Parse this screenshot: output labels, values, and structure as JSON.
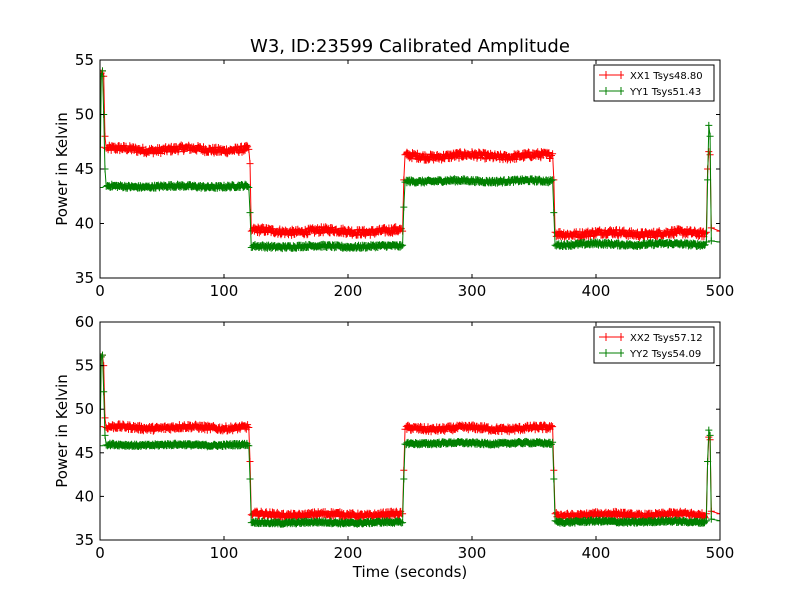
{
  "figure_title": "W3, ID:23599 Calibrated Amplitude",
  "chart_data": [
    {
      "type": "line",
      "ylabel": "Power in Kelvin",
      "xlabel": "",
      "xlim": [
        0,
        500
      ],
      "ylim": [
        35,
        55
      ],
      "xticks": [
        0,
        100,
        200,
        300,
        400,
        500
      ],
      "yticks": [
        35,
        40,
        45,
        50,
        55
      ],
      "legend_position": "top-right",
      "series": [
        {
          "name": "XX1 Tsys48.80",
          "color": "#ff0000",
          "marker": "+",
          "points": [
            [
              0,
              47.0
            ],
            [
              1,
              53.8
            ],
            [
              2,
              54.0
            ],
            [
              3,
              53.5
            ],
            [
              4,
              48.0
            ],
            [
              5,
              46.9
            ],
            [
              120,
              46.8
            ],
            [
              121,
              45.5
            ],
            [
              122,
              39.3
            ],
            [
              244,
              39.3
            ],
            [
              245,
              44.0
            ],
            [
              246,
              46.3
            ],
            [
              365,
              46.4
            ],
            [
              366,
              44.0
            ],
            [
              367,
              39.2
            ],
            [
              489,
              39.2
            ],
            [
              490,
              45.0
            ],
            [
              491,
              46.6
            ],
            [
              492,
              46.3
            ],
            [
              493,
              39.6
            ],
            [
              500,
              39.3
            ]
          ],
          "plateaus": [
            [
              6,
              119,
              46.8
            ],
            [
              123,
              243,
              39.3
            ],
            [
              247,
              364,
              46.2
            ],
            [
              368,
              488,
              39.1
            ]
          ],
          "noise": 0.3
        },
        {
          "name": "YY1 Tsys51.43",
          "color": "#007f00",
          "marker": "+",
          "points": [
            [
              0,
              43.3
            ],
            [
              1,
              53.5
            ],
            [
              2,
              54.0
            ],
            [
              3,
              50.0
            ],
            [
              4,
              45.0
            ],
            [
              5,
              43.4
            ],
            [
              120,
              43.3
            ],
            [
              121,
              41.0
            ],
            [
              122,
              37.8
            ],
            [
              244,
              38.0
            ],
            [
              245,
              41.5
            ],
            [
              246,
              43.8
            ],
            [
              365,
              44.0
            ],
            [
              366,
              41.0
            ],
            [
              367,
              38.0
            ],
            [
              489,
              38.3
            ],
            [
              490,
              44.0
            ],
            [
              491,
              49.0
            ],
            [
              492,
              48.0
            ],
            [
              493,
              38.4
            ],
            [
              500,
              38.3
            ]
          ],
          "plateaus": [
            [
              6,
              119,
              43.4
            ],
            [
              123,
              243,
              37.9
            ],
            [
              247,
              364,
              43.9
            ],
            [
              368,
              488,
              38.1
            ]
          ],
          "noise": 0.15
        }
      ]
    },
    {
      "type": "line",
      "ylabel": "Power in Kelvin",
      "xlabel": "Time (seconds)",
      "xlim": [
        0,
        500
      ],
      "ylim": [
        35,
        60
      ],
      "xticks": [
        0,
        100,
        200,
        300,
        400,
        500
      ],
      "yticks": [
        35,
        40,
        45,
        50,
        55,
        60
      ],
      "legend_position": "top-right",
      "series": [
        {
          "name": "XX2 Tsys57.12",
          "color": "#ff0000",
          "marker": "+",
          "points": [
            [
              0,
              48.0
            ],
            [
              1,
              56.0
            ],
            [
              2,
              56.2
            ],
            [
              3,
              55.0
            ],
            [
              4,
              49.0
            ],
            [
              5,
              47.9
            ],
            [
              120,
              47.9
            ],
            [
              121,
              44.0
            ],
            [
              122,
              37.9
            ],
            [
              244,
              38.0
            ],
            [
              245,
              43.0
            ],
            [
              246,
              47.7
            ],
            [
              365,
              48.0
            ],
            [
              366,
              43.0
            ],
            [
              367,
              38.0
            ],
            [
              489,
              38.0
            ],
            [
              490,
              44.0
            ],
            [
              491,
              46.8
            ],
            [
              492,
              46.5
            ],
            [
              493,
              38.3
            ],
            [
              500,
              38.0
            ]
          ],
          "plateaus": [
            [
              6,
              119,
              47.9
            ],
            [
              123,
              243,
              37.9
            ],
            [
              247,
              364,
              47.8
            ],
            [
              368,
              488,
              37.9
            ]
          ],
          "noise": 0.3
        },
        {
          "name": "YY2 Tsys54.09",
          "color": "#007f00",
          "marker": "+",
          "points": [
            [
              0,
              45.8
            ],
            [
              1,
              56.0
            ],
            [
              2,
              56.2
            ],
            [
              3,
              52.0
            ],
            [
              4,
              47.0
            ],
            [
              5,
              45.9
            ],
            [
              120,
              45.8
            ],
            [
              121,
              42.0
            ],
            [
              122,
              37.0
            ],
            [
              244,
              37.0
            ],
            [
              245,
              42.0
            ],
            [
              246,
              46.0
            ],
            [
              365,
              46.2
            ],
            [
              366,
              42.0
            ],
            [
              367,
              37.2
            ],
            [
              489,
              37.2
            ],
            [
              490,
              44.0
            ],
            [
              491,
              47.6
            ],
            [
              492,
              47.0
            ],
            [
              493,
              37.4
            ],
            [
              500,
              37.2
            ]
          ],
          "plateaus": [
            [
              6,
              119,
              45.9
            ],
            [
              123,
              243,
              37.0
            ],
            [
              247,
              364,
              46.1
            ],
            [
              368,
              488,
              37.1
            ]
          ],
          "noise": 0.15
        }
      ]
    }
  ]
}
